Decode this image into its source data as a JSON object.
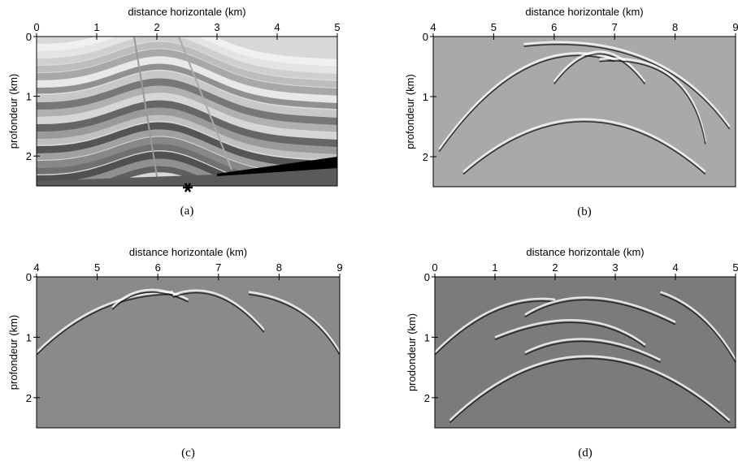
{
  "chart_data": [
    {
      "type": "image",
      "x_label": "distance horizontale (km)",
      "y_label": "profondeur (km)",
      "caption": "(a)",
      "xlim": [
        0,
        5
      ],
      "xticks": [
        0,
        1,
        2,
        3,
        4,
        5
      ],
      "ylim": [
        0,
        2.5
      ],
      "yticks": [
        0,
        1,
        2
      ]
    },
    {
      "type": "image",
      "x_label": "distance horizontale (km)",
      "y_label": "profondeur (km)",
      "caption": "(b)",
      "xlim": [
        4,
        9
      ],
      "xticks": [
        4,
        5,
        6,
        7,
        8,
        9
      ],
      "ylim": [
        0,
        2.5
      ],
      "yticks": [
        0,
        1,
        2
      ]
    },
    {
      "type": "image",
      "x_label": "distance horizontale (km)",
      "y_label": "profondeur (km)",
      "caption": "(c)",
      "xlim": [
        4,
        9
      ],
      "xticks": [
        4,
        5,
        6,
        7,
        8,
        9
      ],
      "ylim": [
        0,
        2.5
      ],
      "yticks": [
        0,
        1,
        2
      ]
    },
    {
      "type": "image",
      "x_label": "distance horizontale (km)",
      "y_label": "prodondeur (km)",
      "caption": "(d)",
      "xlim": [
        0,
        5
      ],
      "xticks": [
        0,
        1,
        2,
        3,
        4,
        5
      ],
      "ylim": [
        0,
        2.5
      ],
      "yticks": [
        0,
        1,
        2
      ]
    }
  ]
}
